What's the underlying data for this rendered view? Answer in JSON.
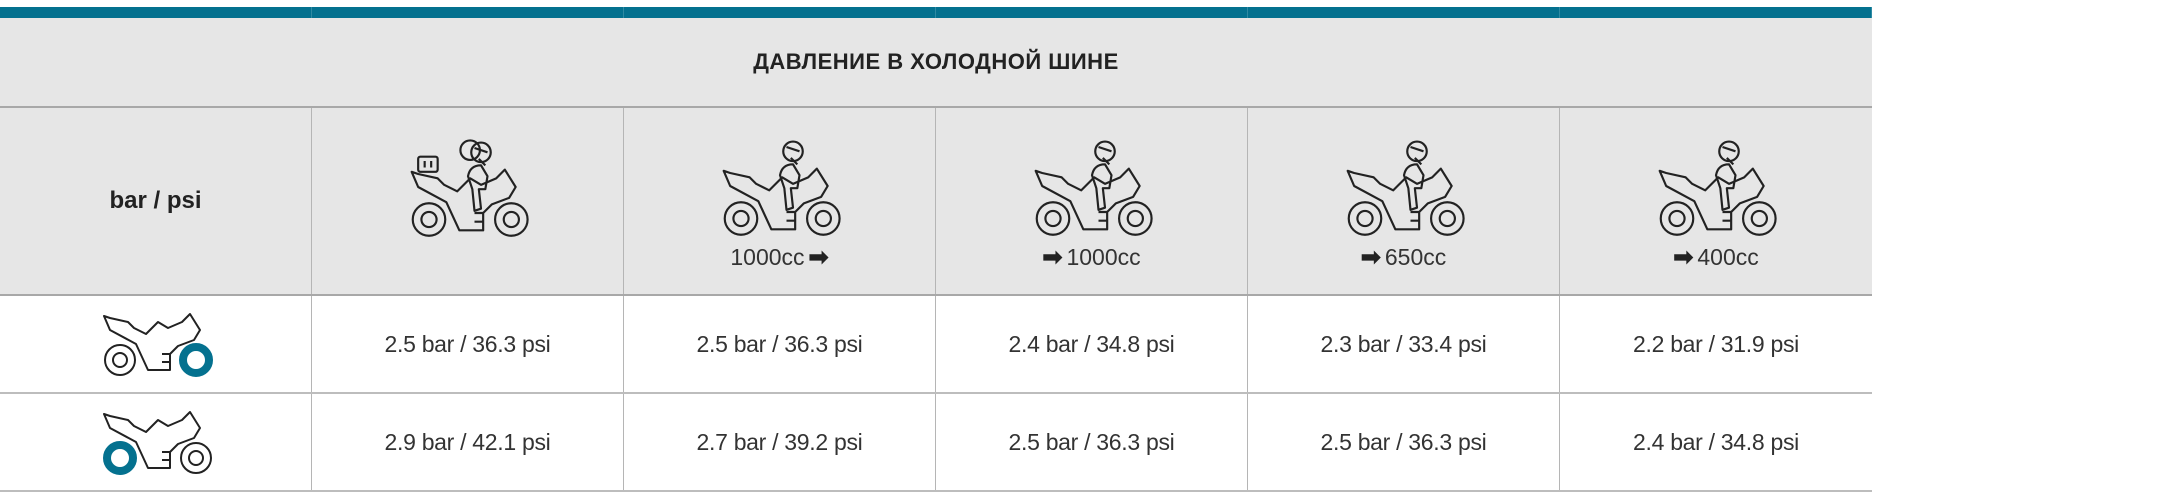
{
  "accent": "#04718f",
  "title": "ДАВЛЕНИЕ В ХОЛОДНОЙ ШИНЕ",
  "unit_label": "bar / psi",
  "columns": [
    {
      "icon": "rider-passenger-luggage-motorcycle-icon",
      "cc": "",
      "arrow": ""
    },
    {
      "icon": "rider-motorcycle-icon",
      "cc": "1000cc",
      "arrow": "after"
    },
    {
      "icon": "rider-motorcycle-icon",
      "cc": "1000cc",
      "arrow": "before"
    },
    {
      "icon": "rider-motorcycle-icon",
      "cc": "650cc",
      "arrow": "before"
    },
    {
      "icon": "rider-motorcycle-icon",
      "cc": "400cc",
      "arrow": "before"
    }
  ],
  "rows": [
    {
      "icon": "front-tire-motorcycle-icon",
      "values": [
        "2.5 bar / 36.3 psi",
        "2.5 bar / 36.3 psi",
        "2.4 bar / 34.8 psi",
        "2.3 bar / 33.4 psi",
        "2.2 bar / 31.9 psi"
      ]
    },
    {
      "icon": "rear-tire-motorcycle-icon",
      "values": [
        "2.9 bar / 42.1 psi",
        "2.7 bar / 39.2 psi",
        "2.5 bar / 36.3 psi",
        "2.5 bar / 36.3 psi",
        "2.4 bar / 34.8 psi"
      ]
    }
  ],
  "arrow_glyph": "➡"
}
